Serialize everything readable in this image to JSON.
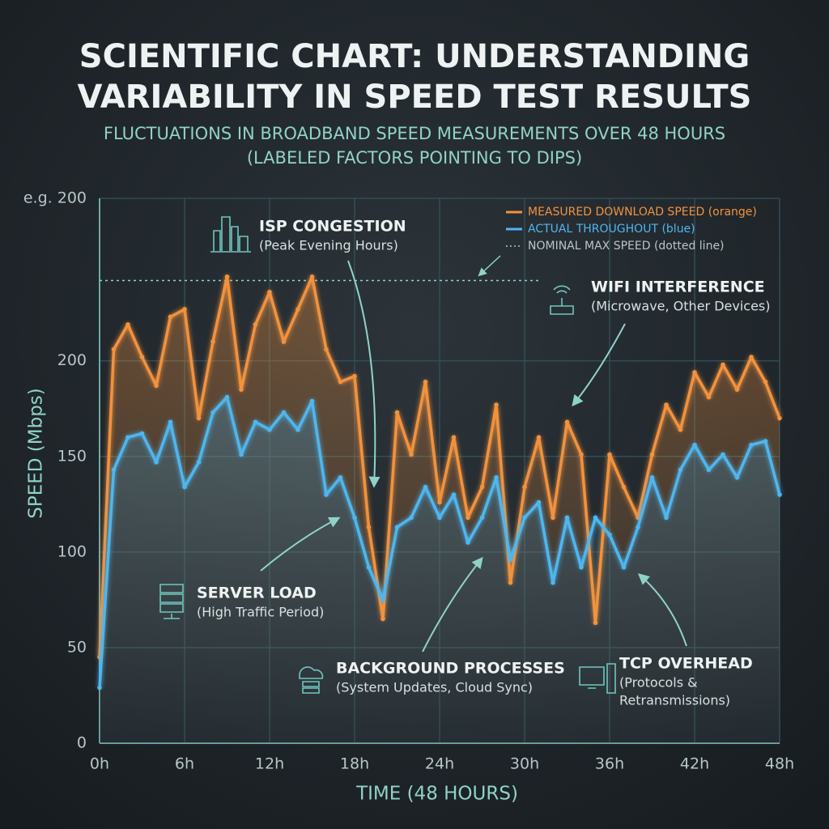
{
  "chart_data": {
    "type": "line",
    "title": [
      "SCIENTIFIC CHART: UNDERSTANDING",
      "VARIABILITY IN SPEED TEST RESULTS"
    ],
    "subtitle": [
      "FLUCTUATIONS IN BROADBAND SPEED MEASUREMENTS OVER 48 HOURS",
      "(LABELED FACTORS POINTING TO DIPS)"
    ],
    "x_label": "TIME (48 HOURS)",
    "y_label": "SPEED (Mbps)",
    "y_axis_top_note": "e.g. 200",
    "x": [
      0,
      1,
      2,
      3,
      4,
      5,
      6,
      7,
      8,
      9,
      10,
      11,
      12,
      13,
      14,
      15,
      16,
      17,
      18,
      19,
      20,
      21,
      22,
      23,
      24,
      25,
      26,
      27,
      28,
      29,
      30,
      31,
      32,
      33,
      34,
      35,
      36,
      37,
      38,
      39,
      40,
      41,
      42,
      43,
      44,
      45,
      46,
      47,
      48
    ],
    "series": [
      {
        "name": "MEASURED DOWNLOAD SPEED (orange)",
        "color": "#f2923e",
        "values": [
          45,
          206,
          219,
          202,
          187,
          223,
          227,
          170,
          210,
          244,
          185,
          219,
          236,
          210,
          227,
          244,
          206,
          189,
          192,
          113,
          65,
          173,
          151,
          189,
          126,
          160,
          118,
          134,
          177,
          84,
          134,
          160,
          118,
          168,
          151,
          63,
          151,
          134,
          118,
          151,
          177,
          164,
          194,
          181,
          198,
          185,
          202,
          189,
          170
        ]
      },
      {
        "name": "ACTUAL THROUGHOUT (blue)",
        "color": "#4fb6ee",
        "values": [
          29,
          143,
          160,
          162,
          147,
          168,
          134,
          147,
          173,
          181,
          151,
          168,
          164,
          173,
          164,
          179,
          130,
          139,
          118,
          92,
          75,
          113,
          118,
          134,
          118,
          130,
          105,
          118,
          139,
          96,
          118,
          126,
          84,
          118,
          92,
          118,
          109,
          92,
          113,
          139,
          118,
          143,
          156,
          143,
          151,
          139,
          156,
          158,
          130
        ]
      }
    ],
    "reference_line": {
      "name": "NOMINAL MAX SPEED (dotted line)",
      "value": 242,
      "color": "#8fd3c8"
    },
    "xlim": [
      0,
      48
    ],
    "xticks": [
      {
        "value": 0,
        "label": "0h"
      },
      {
        "value": 6,
        "label": "6h"
      },
      {
        "value": 12,
        "label": "12h"
      },
      {
        "value": 18,
        "label": "18h"
      },
      {
        "value": 24,
        "label": "24h"
      },
      {
        "value": 30,
        "label": "30h"
      },
      {
        "value": 36,
        "label": "36h"
      },
      {
        "value": 42,
        "label": "42h"
      },
      {
        "value": 48,
        "label": "48h"
      }
    ],
    "ylim": [
      0,
      285
    ],
    "yticks": [
      0,
      50,
      100,
      150,
      200
    ],
    "grid": true,
    "annotations": [
      {
        "title": "ISP CONGESTION",
        "text": [
          "(Peak Evening Hours)"
        ]
      },
      {
        "title": "WIFI INTERFERENCE",
        "text": [
          "(Microwave, Other Devices)"
        ]
      },
      {
        "title": "SERVER LOAD",
        "text": [
          "(High Traffic Period)"
        ]
      },
      {
        "title": "BACKGROUND PROCESSES",
        "text": [
          "(System Updates, Cloud Sync)"
        ]
      },
      {
        "title": "TCP OVERHEAD",
        "text": [
          "(Protocols &",
          "Retransmissions)"
        ]
      }
    ]
  }
}
